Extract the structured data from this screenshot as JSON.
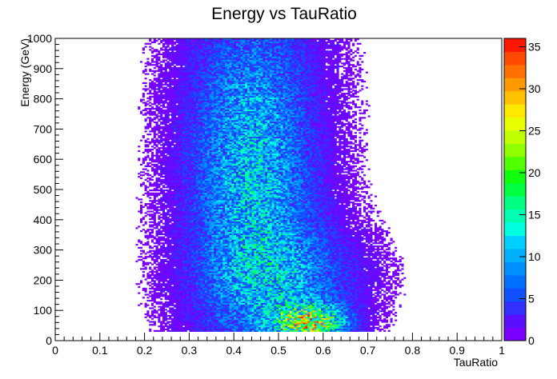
{
  "chart_data": {
    "type": "heatmap",
    "title": "Energy  vs TauRatio",
    "xlabel": "TauRatio",
    "ylabel": "Energy (GeV)",
    "xlim": [
      0,
      1
    ],
    "ylim": [
      0,
      1000
    ],
    "x_ticks": [
      "0",
      "0.1",
      "0.2",
      "0.3",
      "0.4",
      "0.5",
      "0.6",
      "0.7",
      "0.8",
      "0.9",
      "1"
    ],
    "y_ticks": [
      "0",
      "100",
      "200",
      "300",
      "400",
      "500",
      "600",
      "700",
      "800",
      "900",
      "1000"
    ],
    "z_ticks": [
      "0",
      "5",
      "10",
      "15",
      "20",
      "25",
      "30",
      "35"
    ],
    "zlim": [
      0,
      36
    ],
    "x_bins": 200,
    "y_bins": 200,
    "occupied_y_range": [
      30,
      1000
    ],
    "clusters": [
      {
        "x_center": 0.57,
        "y_center": 60,
        "peak_count": 36
      },
      {
        "x_center": 0.35,
        "y_center": 560,
        "peak_count": 12
      }
    ],
    "legend": "color scale (right)",
    "grid": false,
    "colors": {
      "palette": [
        "#7a00ff",
        "#5a10ff",
        "#3030ff",
        "#1050ff",
        "#0070ff",
        "#0090ff",
        "#00b0ff",
        "#00d0ff",
        "#00ffe0",
        "#00ffb0",
        "#00ff80",
        "#00ff40",
        "#10ff10",
        "#50ff00",
        "#90ff00",
        "#c0ff00",
        "#e8ff00",
        "#ffe800",
        "#ffc000",
        "#ff9a00",
        "#ff7000",
        "#ff4800",
        "#ff1800"
      ]
    }
  }
}
